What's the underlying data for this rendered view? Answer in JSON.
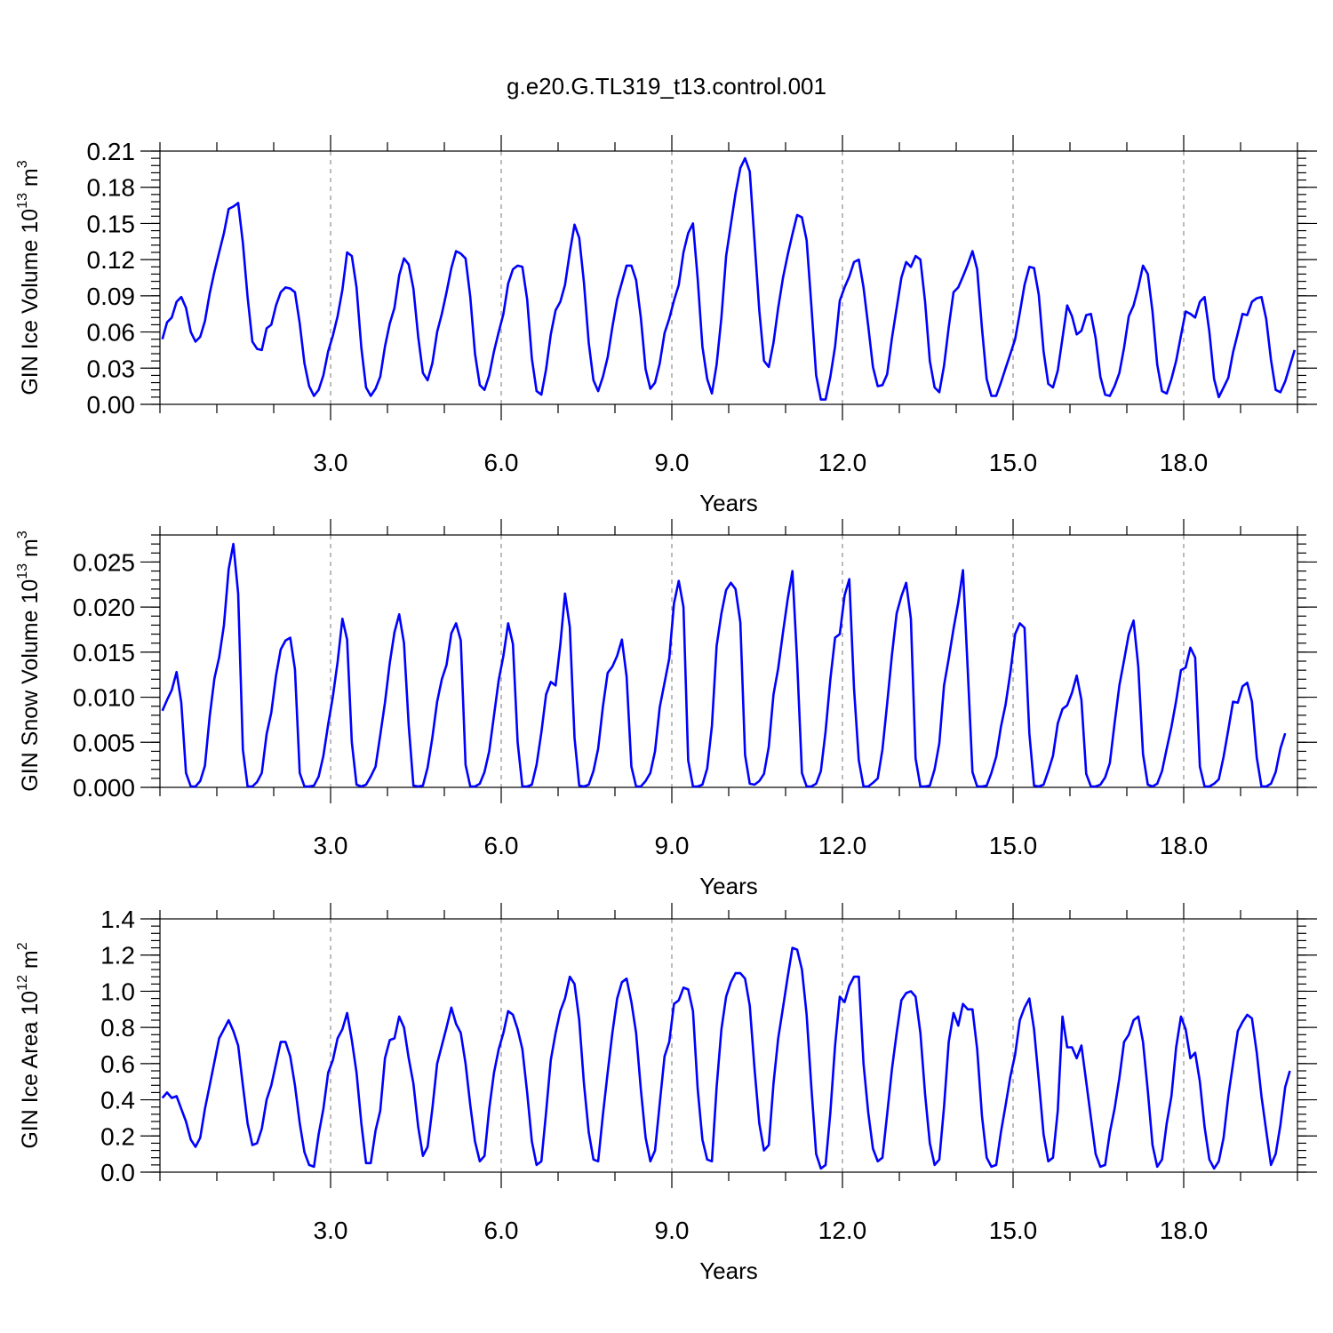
{
  "title": "g.e20.G.TL319_t13.control.001",
  "colors": {
    "line": "#0000ff"
  },
  "chart_data": [
    {
      "type": "line",
      "ylabel": {
        "main": "GIN Ice Volume 10",
        "exp": "13",
        "unit": " m",
        "unit_exp": "3"
      },
      "xlabel": "Years",
      "xlim": [
        0.0,
        20.0
      ],
      "ylim": [
        0.0,
        0.21
      ],
      "x_ticks": [
        "3.0",
        "6.0",
        "9.0",
        "12.0",
        "15.0",
        "18.0"
      ],
      "x_tick_values": [
        3,
        6,
        9,
        12,
        15,
        18
      ],
      "y_ticks": [
        "0.00",
        "0.03",
        "0.06",
        "0.09",
        "0.12",
        "0.15",
        "0.18",
        "0.21"
      ],
      "y_tick_values": [
        0.0,
        0.03,
        0.06,
        0.09,
        0.12,
        0.15,
        0.18,
        0.21
      ],
      "y_minor_step": 0.006,
      "grid": "dashed vertical at major x ticks",
      "series": [
        {
          "x_start": 0.0417,
          "x_step": 0.0833,
          "values": [
            0.054,
            0.068,
            0.072,
            0.085,
            0.089,
            0.08,
            0.06,
            0.052,
            0.056,
            0.069,
            0.092,
            0.11,
            0.126,
            0.142,
            0.162,
            0.164,
            0.167,
            0.134,
            0.089,
            0.052,
            0.046,
            0.045,
            0.063,
            0.066,
            0.082,
            0.093,
            0.097,
            0.096,
            0.093,
            0.067,
            0.034,
            0.015,
            0.007,
            0.012,
            0.024,
            0.044,
            0.057,
            0.073,
            0.095,
            0.126,
            0.123,
            0.097,
            0.047,
            0.014,
            0.007,
            0.013,
            0.023,
            0.048,
            0.067,
            0.08,
            0.107,
            0.121,
            0.116,
            0.096,
            0.056,
            0.026,
            0.02,
            0.034,
            0.06,
            0.075,
            0.093,
            0.113,
            0.127,
            0.125,
            0.121,
            0.089,
            0.042,
            0.016,
            0.012,
            0.024,
            0.044,
            0.06,
            0.075,
            0.1,
            0.112,
            0.115,
            0.114,
            0.087,
            0.038,
            0.011,
            0.008,
            0.029,
            0.058,
            0.078,
            0.085,
            0.099,
            0.126,
            0.149,
            0.138,
            0.101,
            0.051,
            0.02,
            0.011,
            0.023,
            0.039,
            0.064,
            0.087,
            0.101,
            0.115,
            0.115,
            0.103,
            0.072,
            0.029,
            0.013,
            0.018,
            0.034,
            0.059,
            0.071,
            0.086,
            0.099,
            0.126,
            0.142,
            0.15,
            0.104,
            0.048,
            0.021,
            0.009,
            0.033,
            0.072,
            0.123,
            0.149,
            0.175,
            0.196,
            0.204,
            0.193,
            0.135,
            0.078,
            0.036,
            0.031,
            0.051,
            0.08,
            0.105,
            0.124,
            0.141,
            0.157,
            0.155,
            0.136,
            0.082,
            0.024,
            0.004,
            0.004,
            0.023,
            0.048,
            0.086,
            0.097,
            0.106,
            0.118,
            0.12,
            0.097,
            0.065,
            0.031,
            0.015,
            0.016,
            0.025,
            0.055,
            0.08,
            0.105,
            0.118,
            0.114,
            0.123,
            0.12,
            0.085,
            0.036,
            0.014,
            0.01,
            0.032,
            0.064,
            0.093,
            0.097,
            0.106,
            0.116,
            0.127,
            0.112,
            0.063,
            0.021,
            0.007,
            0.007,
            0.018,
            0.03,
            0.042,
            0.054,
            0.076,
            0.099,
            0.114,
            0.113,
            0.091,
            0.044,
            0.017,
            0.014,
            0.028,
            0.055,
            0.082,
            0.073,
            0.058,
            0.061,
            0.074,
            0.075,
            0.055,
            0.023,
            0.008,
            0.007,
            0.015,
            0.026,
            0.047,
            0.073,
            0.082,
            0.097,
            0.115,
            0.108,
            0.077,
            0.033,
            0.011,
            0.009,
            0.021,
            0.036,
            0.057,
            0.077,
            0.075,
            0.072,
            0.085,
            0.089,
            0.06,
            0.021,
            0.006,
            0.014,
            0.022,
            0.043,
            0.059,
            0.075,
            0.074,
            0.085,
            0.088,
            0.089,
            0.071,
            0.037,
            0.012,
            0.01,
            0.019,
            0.032,
            0.045
          ]
        }
      ]
    },
    {
      "type": "line",
      "ylabel": {
        "main": "GIN Snow Volume 10",
        "exp": "13",
        "unit": " m",
        "unit_exp": "3"
      },
      "xlabel": "Years",
      "xlim": [
        0.0,
        20.0
      ],
      "ylim": [
        0.0,
        0.028
      ],
      "x_ticks": [
        "3.0",
        "6.0",
        "9.0",
        "12.0",
        "15.0",
        "18.0"
      ],
      "x_tick_values": [
        3,
        6,
        9,
        12,
        15,
        18
      ],
      "y_ticks": [
        "0.000",
        "0.005",
        "0.010",
        "0.015",
        "0.020",
        "0.025"
      ],
      "y_tick_values": [
        0.0,
        0.005,
        0.01,
        0.015,
        0.02,
        0.025
      ],
      "y_minor_step": 0.001,
      "grid": "dashed vertical at major x ticks",
      "series": [
        {
          "x_start": 0.0417,
          "x_step": 0.0833,
          "values": [
            0.0085,
            0.0097,
            0.0108,
            0.0128,
            0.0094,
            0.0016,
            0.0001,
            0.0001,
            0.0007,
            0.0024,
            0.0079,
            0.0121,
            0.0144,
            0.018,
            0.0242,
            0.027,
            0.0215,
            0.0042,
            0.0001,
            0.0001,
            0.0006,
            0.0016,
            0.0059,
            0.0083,
            0.0124,
            0.0153,
            0.0163,
            0.0166,
            0.0131,
            0.0016,
            0.0001,
            0.0001,
            0.0002,
            0.0012,
            0.0035,
            0.007,
            0.0101,
            0.0139,
            0.0187,
            0.0164,
            0.005,
            0.0003,
            0.0001,
            0.0003,
            0.0012,
            0.0023,
            0.0058,
            0.0094,
            0.0138,
            0.0172,
            0.0192,
            0.016,
            0.0069,
            0.0002,
            0.0001,
            0.0002,
            0.0022,
            0.0055,
            0.0095,
            0.012,
            0.0136,
            0.0171,
            0.0182,
            0.0163,
            0.0025,
            0.0001,
            0.0001,
            0.0004,
            0.0017,
            0.004,
            0.008,
            0.0119,
            0.0146,
            0.0182,
            0.0159,
            0.005,
            0.0001,
            0.0001,
            0.0003,
            0.0025,
            0.0061,
            0.0103,
            0.0117,
            0.0113,
            0.0158,
            0.0215,
            0.0178,
            0.0055,
            0.0002,
            0.0001,
            0.0003,
            0.0018,
            0.0043,
            0.009,
            0.0127,
            0.0134,
            0.0146,
            0.0164,
            0.0123,
            0.0023,
            0.0001,
            0.0001,
            0.0007,
            0.0016,
            0.004,
            0.0089,
            0.0116,
            0.0143,
            0.0204,
            0.0229,
            0.02,
            0.003,
            0.0001,
            0.0001,
            0.0003,
            0.0021,
            0.0068,
            0.0157,
            0.0193,
            0.0219,
            0.0227,
            0.022,
            0.0183,
            0.0036,
            0.0004,
            0.0003,
            0.0007,
            0.0015,
            0.0045,
            0.0103,
            0.0132,
            0.0172,
            0.0209,
            0.024,
            0.014,
            0.0016,
            0.0001,
            0.0001,
            0.0004,
            0.0018,
            0.0062,
            0.012,
            0.0166,
            0.017,
            0.0213,
            0.0231,
            0.011,
            0.003,
            0.0001,
            0.0001,
            0.0005,
            0.001,
            0.0042,
            0.0093,
            0.0147,
            0.0193,
            0.0212,
            0.0227,
            0.0187,
            0.0032,
            0.0001,
            0.0001,
            0.0002,
            0.002,
            0.0049,
            0.0113,
            0.0143,
            0.0176,
            0.0205,
            0.0241,
            0.013,
            0.0017,
            0.0001,
            0.0001,
            0.0002,
            0.0016,
            0.0034,
            0.0067,
            0.0092,
            0.0128,
            0.017,
            0.0182,
            0.0177,
            0.006,
            0.0002,
            0.0001,
            0.0003,
            0.0018,
            0.0035,
            0.0071,
            0.0087,
            0.0091,
            0.0105,
            0.0124,
            0.0097,
            0.0015,
            0.0001,
            0.0001,
            0.0003,
            0.0011,
            0.0027,
            0.0071,
            0.0113,
            0.0141,
            0.017,
            0.0185,
            0.0134,
            0.0037,
            0.0003,
            0.0001,
            0.0004,
            0.0018,
            0.0043,
            0.0067,
            0.0096,
            0.013,
            0.0133,
            0.0155,
            0.0144,
            0.0023,
            0.0001,
            0.0001,
            0.0004,
            0.0009,
            0.0034,
            0.0064,
            0.0095,
            0.0094,
            0.0112,
            0.0116,
            0.0095,
            0.0033,
            0.0001,
            0.0001,
            0.0004,
            0.0017,
            0.0043,
            0.006
          ]
        }
      ]
    },
    {
      "type": "line",
      "ylabel": {
        "main": "GIN Ice Area 10",
        "exp": "12",
        "unit": " m",
        "unit_exp": "2"
      },
      "xlabel": "Years",
      "xlim": [
        0.0,
        20.0
      ],
      "ylim": [
        0.0,
        1.4
      ],
      "x_ticks": [
        "3.0",
        "6.0",
        "9.0",
        "12.0",
        "15.0",
        "18.0"
      ],
      "x_tick_values": [
        3,
        6,
        9,
        12,
        15,
        18
      ],
      "y_ticks": [
        "0.0",
        "0.2",
        "0.4",
        "0.6",
        "0.8",
        "1.0",
        "1.2",
        "1.4"
      ],
      "y_tick_values": [
        0.0,
        0.2,
        0.4,
        0.6,
        0.8,
        1.0,
        1.2,
        1.4
      ],
      "y_minor_step": 0.04,
      "grid": "dashed vertical at major x ticks",
      "series": [
        {
          "x_start": 0.0417,
          "x_step": 0.0833,
          "values": [
            0.41,
            0.44,
            0.41,
            0.42,
            0.35,
            0.28,
            0.18,
            0.14,
            0.19,
            0.35,
            0.48,
            0.61,
            0.74,
            0.79,
            0.84,
            0.78,
            0.7,
            0.48,
            0.27,
            0.15,
            0.16,
            0.24,
            0.4,
            0.48,
            0.6,
            0.72,
            0.72,
            0.64,
            0.48,
            0.27,
            0.11,
            0.04,
            0.03,
            0.21,
            0.35,
            0.55,
            0.62,
            0.74,
            0.79,
            0.88,
            0.73,
            0.55,
            0.27,
            0.05,
            0.05,
            0.23,
            0.34,
            0.63,
            0.73,
            0.74,
            0.86,
            0.8,
            0.63,
            0.49,
            0.25,
            0.09,
            0.14,
            0.35,
            0.6,
            0.7,
            0.8,
            0.91,
            0.82,
            0.77,
            0.6,
            0.37,
            0.17,
            0.06,
            0.09,
            0.35,
            0.55,
            0.68,
            0.77,
            0.89,
            0.87,
            0.79,
            0.68,
            0.44,
            0.17,
            0.04,
            0.06,
            0.33,
            0.62,
            0.77,
            0.89,
            0.96,
            1.08,
            1.04,
            0.84,
            0.49,
            0.22,
            0.07,
            0.06,
            0.32,
            0.55,
            0.77,
            0.96,
            1.05,
            1.07,
            0.94,
            0.77,
            0.46,
            0.19,
            0.06,
            0.12,
            0.38,
            0.64,
            0.72,
            0.93,
            0.95,
            1.02,
            1.01,
            0.89,
            0.46,
            0.18,
            0.07,
            0.06,
            0.47,
            0.79,
            0.97,
            1.05,
            1.1,
            1.1,
            1.07,
            0.92,
            0.57,
            0.27,
            0.12,
            0.15,
            0.49,
            0.74,
            0.91,
            1.08,
            1.24,
            1.23,
            1.12,
            0.87,
            0.47,
            0.1,
            0.02,
            0.04,
            0.33,
            0.7,
            0.97,
            0.94,
            1.03,
            1.08,
            1.08,
            0.6,
            0.33,
            0.13,
            0.06,
            0.08,
            0.32,
            0.57,
            0.77,
            0.95,
            0.99,
            1.0,
            0.97,
            0.77,
            0.43,
            0.16,
            0.04,
            0.07,
            0.36,
            0.72,
            0.88,
            0.81,
            0.93,
            0.9,
            0.9,
            0.68,
            0.31,
            0.08,
            0.03,
            0.04,
            0.22,
            0.37,
            0.53,
            0.65,
            0.84,
            0.91,
            0.96,
            0.79,
            0.51,
            0.21,
            0.06,
            0.08,
            0.34,
            0.86,
            0.69,
            0.69,
            0.63,
            0.7,
            0.5,
            0.3,
            0.1,
            0.03,
            0.04,
            0.22,
            0.35,
            0.52,
            0.72,
            0.76,
            0.84,
            0.86,
            0.72,
            0.45,
            0.15,
            0.03,
            0.07,
            0.27,
            0.42,
            0.69,
            0.86,
            0.79,
            0.63,
            0.66,
            0.5,
            0.25,
            0.07,
            0.02,
            0.06,
            0.19,
            0.42,
            0.6,
            0.78,
            0.83,
            0.87,
            0.85,
            0.66,
            0.42,
            0.23,
            0.04,
            0.1,
            0.26,
            0.47,
            0.56
          ]
        }
      ]
    }
  ]
}
